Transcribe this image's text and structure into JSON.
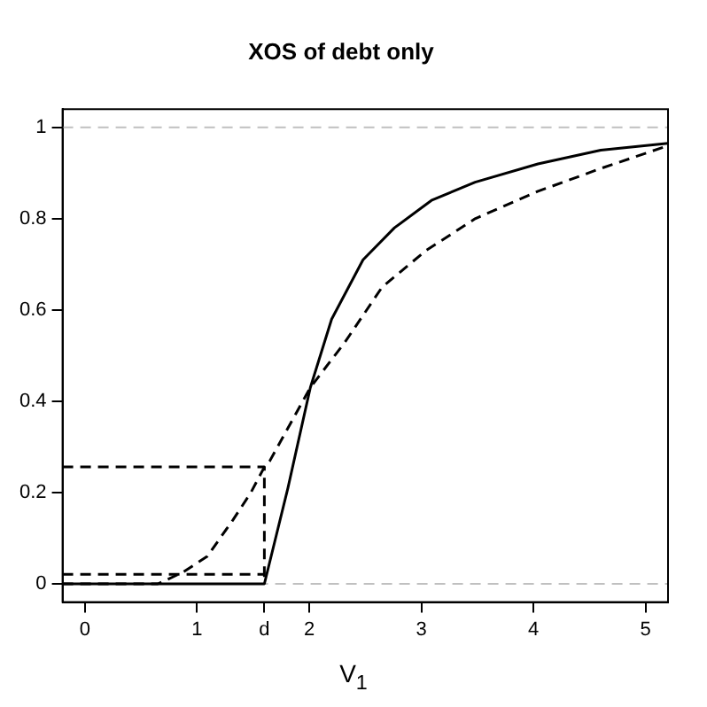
{
  "chart_data": {
    "type": "line",
    "title": "XOS of debt only",
    "xlabel": "V$_{1}$",
    "xlim": [
      -0.2,
      5.2
    ],
    "ylim": [
      -0.04,
      1.04
    ],
    "xticks": [
      0,
      1,
      {
        "value": 1.6,
        "label": "d"
      },
      2,
      3,
      4,
      5
    ],
    "yticks": [
      0,
      0.2,
      0.4,
      0.6,
      0.8,
      1
    ],
    "grid": false,
    "legend": false,
    "marker": "none",
    "series": [
      {
        "color": "#000000",
        "line_style": "solid",
        "x": [
          -0.2,
          1.6,
          1.81,
          2.01,
          2.2,
          2.48,
          2.76,
          3.09,
          3.48,
          4.04,
          4.6,
          5.2
        ],
        "values": [
          0,
          0,
          0.21,
          0.43,
          0.58,
          0.71,
          0.78,
          0.84,
          0.88,
          0.92,
          0.95,
          0.965
        ]
      },
      {
        "color": "#000000",
        "line_style": "dashed",
        "x": [
          -0.2,
          0.65,
          0.87,
          1.09,
          1.32,
          1.48,
          1.6,
          1.65,
          2.01,
          2.32,
          2.65,
          3.04,
          3.48,
          4.04,
          4.6,
          5.2
        ],
        "values": [
          0,
          0,
          0.025,
          0.06,
          0.14,
          0.2,
          0.256,
          0.27,
          0.43,
          0.53,
          0.65,
          0.73,
          0.8,
          0.86,
          0.91,
          0.96
        ]
      },
      {
        "color": "#000000",
        "line_style": "dashed",
        "x": [
          -0.2,
          1.6,
          1.6
        ],
        "values": [
          0.256,
          0.256,
          0
        ]
      },
      {
        "color": "#000000",
        "line_style": "dashed",
        "x": [
          -0.2,
          1.6
        ],
        "values": [
          0.021,
          0.021
        ]
      }
    ],
    "ref_lines": [
      {
        "axis": "y",
        "value": 0,
        "color": "#c0c0c0",
        "line_style": "dashed"
      },
      {
        "axis": "y",
        "value": 1,
        "color": "#c0c0c0",
        "line_style": "dashed"
      }
    ]
  }
}
